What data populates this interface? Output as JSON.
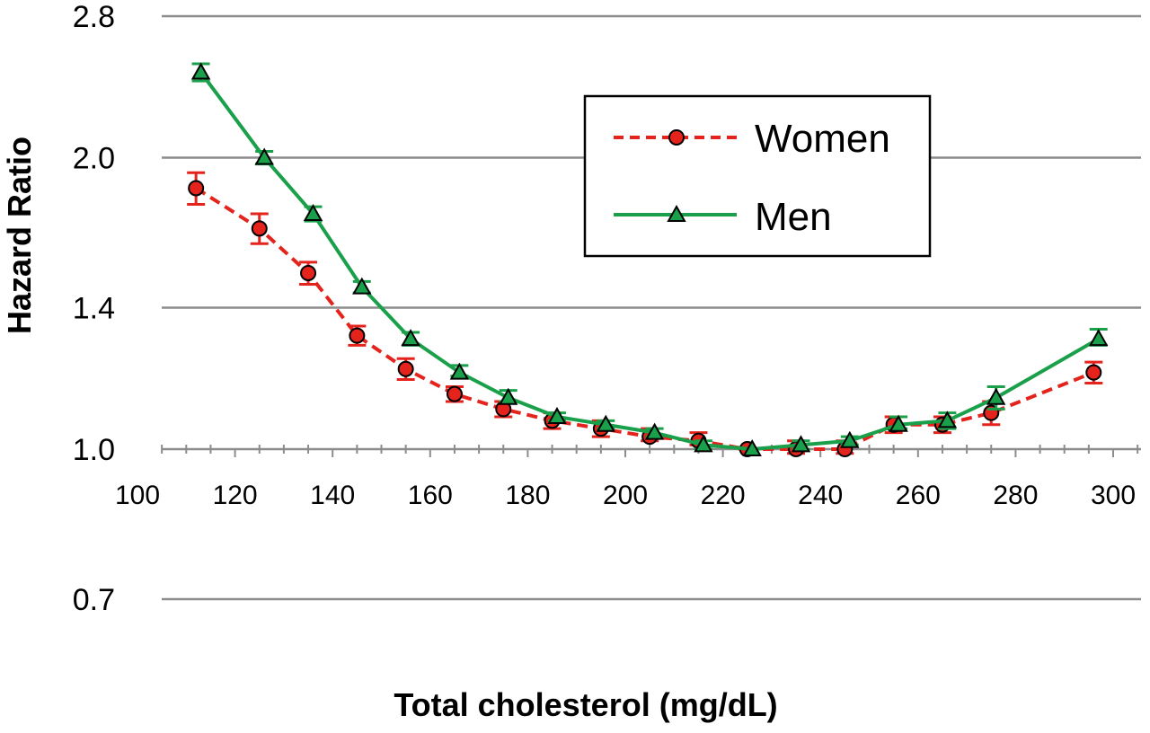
{
  "chart_data": {
    "type": "line",
    "title": "",
    "xlabel": "Total cholesterol (mg/dL)",
    "ylabel": "Hazard Ratio",
    "y_scale": "log",
    "ylim": [
      0.7,
      2.8
    ],
    "xlim": [
      100,
      310
    ],
    "y_ticks": [
      "2.8",
      "2.0",
      "1.4",
      "1.0",
      "0.7"
    ],
    "y_tick_values": [
      2.8,
      2.0,
      1.4,
      1.0,
      0.7
    ],
    "x_ticks": [
      "100",
      "120",
      "140",
      "160",
      "180",
      "200",
      "220",
      "240",
      "260",
      "280",
      "300"
    ],
    "x_tick_values": [
      100,
      120,
      140,
      160,
      180,
      200,
      220,
      240,
      260,
      280,
      300
    ],
    "x_axis_at_y": 1.0,
    "grid": true,
    "legend_position": "top-right",
    "series": [
      {
        "name": "Women",
        "color": "#e3231c",
        "line_style": "dashed",
        "marker": "circle",
        "marker_fill": "#e3231c",
        "x": [
          112,
          125,
          135,
          145,
          155,
          165,
          175,
          185,
          195,
          205,
          215,
          225,
          235,
          245,
          255,
          265,
          275,
          296
        ],
        "y": [
          1.86,
          1.69,
          1.52,
          1.31,
          1.21,
          1.14,
          1.1,
          1.07,
          1.05,
          1.03,
          1.02,
          1.0,
          1.0,
          1.0,
          1.06,
          1.06,
          1.09,
          1.2
        ],
        "err_low": [
          1.79,
          1.63,
          1.48,
          1.28,
          1.18,
          1.12,
          1.08,
          1.05,
          1.03,
          1.02,
          1.01,
          1.0,
          0.99,
          0.99,
          1.04,
          1.04,
          1.06,
          1.17
        ],
        "err_high": [
          1.93,
          1.75,
          1.56,
          1.34,
          1.24,
          1.16,
          1.12,
          1.09,
          1.07,
          1.05,
          1.04,
          1.0,
          1.02,
          1.02,
          1.08,
          1.08,
          1.12,
          1.23
        ]
      },
      {
        "name": "Men",
        "color": "#1aa04a",
        "line_style": "solid",
        "marker": "triangle",
        "marker_fill": "#1aa04a",
        "x": [
          113,
          126,
          136,
          146,
          156,
          166,
          176,
          186,
          196,
          206,
          216,
          226,
          236,
          246,
          256,
          266,
          276,
          297
        ],
        "y": [
          2.45,
          2.0,
          1.75,
          1.47,
          1.3,
          1.2,
          1.13,
          1.08,
          1.06,
          1.04,
          1.01,
          1.0,
          1.01,
          1.02,
          1.06,
          1.07,
          1.13,
          1.3
        ],
        "err_low": [
          2.4,
          1.97,
          1.72,
          1.45,
          1.28,
          1.19,
          1.12,
          1.07,
          1.05,
          1.03,
          1.0,
          1.0,
          1.0,
          1.01,
          1.05,
          1.05,
          1.1,
          1.28
        ],
        "err_high": [
          2.5,
          2.03,
          1.78,
          1.49,
          1.32,
          1.22,
          1.15,
          1.09,
          1.07,
          1.05,
          1.02,
          1.0,
          1.02,
          1.03,
          1.08,
          1.09,
          1.16,
          1.33
        ]
      }
    ]
  }
}
